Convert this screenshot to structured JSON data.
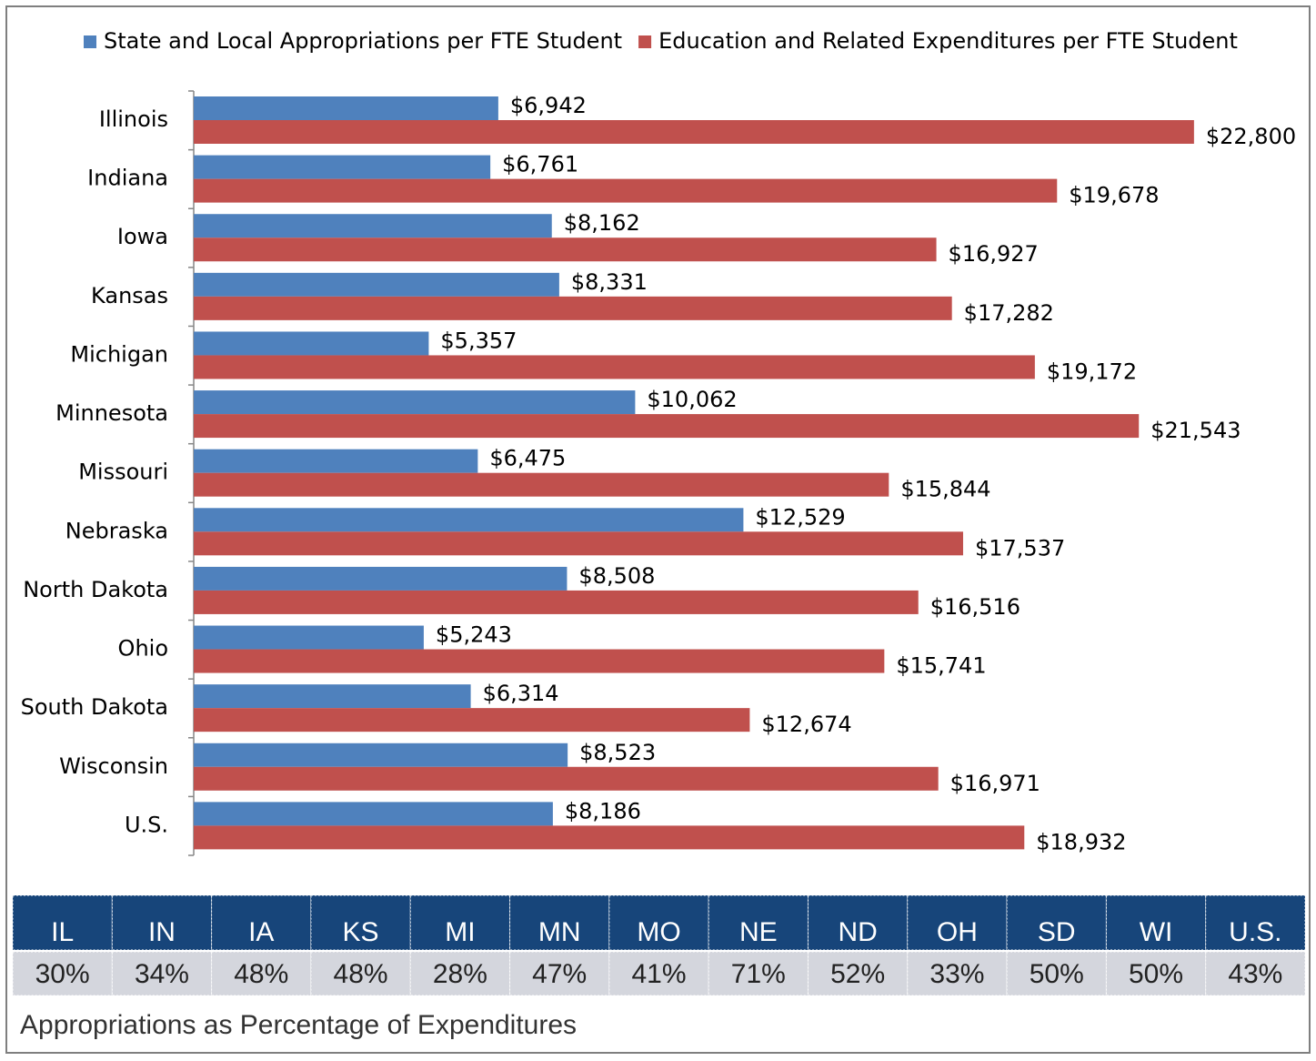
{
  "chart_data": {
    "type": "bar",
    "orientation": "horizontal",
    "categories": [
      "Illinois",
      "Indiana",
      "Iowa",
      "Kansas",
      "Michigan",
      "Minnesota",
      "Missouri",
      "Nebraska",
      "North Dakota",
      "Ohio",
      "South Dakota",
      "Wisconsin",
      "U.S."
    ],
    "series": [
      {
        "name": "State and Local Appropriations per FTE Student",
        "color": "#4f81bd",
        "values": [
          6942,
          6761,
          8162,
          8331,
          5357,
          10062,
          6475,
          12529,
          8508,
          5243,
          6314,
          8523,
          8186
        ],
        "value_labels": [
          "$6,942",
          "$6,761",
          "$8,162",
          "$8,331",
          "$5,357",
          "$10,062",
          "$6,475",
          "$12,529",
          "$8,508",
          "$5,243",
          "$6,314",
          "$8,523",
          "$8,186"
        ]
      },
      {
        "name": "Education and Related Expenditures per FTE Student",
        "color": "#c0504d",
        "values": [
          22800,
          19678,
          16927,
          17282,
          19172,
          21543,
          15844,
          17537,
          16516,
          15741,
          12674,
          16971,
          18932
        ],
        "value_labels": [
          "$22,800",
          "$19,678",
          "$16,927",
          "$17,282",
          "$19,172",
          "$21,543",
          "$15,844",
          "$17,537",
          "$16,516",
          "$15,741",
          "$12,674",
          "$16,971",
          "$18,932"
        ]
      }
    ],
    "xlim": [
      0,
      25000
    ],
    "legend": "top"
  },
  "table": {
    "headers": [
      "IL",
      "IN",
      "IA",
      "KS",
      "MI",
      "MN",
      "MO",
      "NE",
      "ND",
      "OH",
      "SD",
      "WI",
      "U.S."
    ],
    "rows": [
      [
        "30%",
        "34%",
        "48%",
        "48%",
        "28%",
        "47%",
        "41%",
        "71%",
        "52%",
        "33%",
        "50%",
        "50%",
        "43%"
      ]
    ],
    "caption": "Appropriations as Percentage of Expenditures"
  }
}
